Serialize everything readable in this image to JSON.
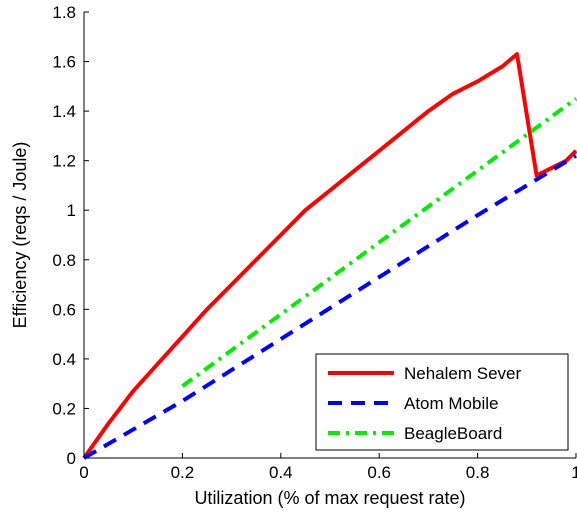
{
  "chart_data": {
    "type": "line",
    "xlabel": "Utilization (% of max request rate)",
    "ylabel": "Efficiency (reqs / Joule)",
    "xlim": [
      0,
      1
    ],
    "ylim": [
      0,
      1.8
    ],
    "grid": false,
    "x_ticks": [
      0,
      0.2,
      0.4,
      0.6,
      0.8,
      1
    ],
    "x_tick_labels": [
      "0",
      "0.2",
      "0.4",
      "0.6",
      "0.8",
      "1"
    ],
    "y_ticks": [
      0,
      0.2,
      0.4,
      0.6,
      0.8,
      1,
      1.2,
      1.4,
      1.6,
      1.8
    ],
    "y_tick_labels": [
      "0",
      "0.2",
      "0.4",
      "0.6",
      "0.8",
      "1",
      "1.2",
      "1.4",
      "1.6",
      "1.8"
    ],
    "legend_position": "bottom-right",
    "series": [
      {
        "name": "Nehalem Sever",
        "color": "#ff0000",
        "style": "solid",
        "x": [
          0,
          0.05,
          0.1,
          0.15,
          0.2,
          0.25,
          0.3,
          0.35,
          0.4,
          0.45,
          0.5,
          0.55,
          0.6,
          0.65,
          0.7,
          0.75,
          0.8,
          0.85,
          0.88,
          0.92,
          0.95,
          0.98,
          1.0
        ],
        "y": [
          0.0,
          0.14,
          0.27,
          0.38,
          0.49,
          0.6,
          0.7,
          0.8,
          0.9,
          1.0,
          1.08,
          1.16,
          1.24,
          1.32,
          1.4,
          1.47,
          1.52,
          1.58,
          1.63,
          1.14,
          1.17,
          1.2,
          1.24
        ]
      },
      {
        "name": "Atom Mobile",
        "color": "#0000ff",
        "style": "dashed",
        "x": [
          0,
          0.2,
          0.4,
          0.6,
          0.8,
          1.0
        ],
        "y": [
          0.0,
          0.23,
          0.48,
          0.73,
          0.98,
          1.22
        ]
      },
      {
        "name": "BeagleBoard",
        "color": "#00ee00",
        "style": "dashdot",
        "x": [
          0.2,
          0.4,
          0.6,
          0.8,
          1.0
        ],
        "y": [
          0.29,
          0.58,
          0.87,
          1.16,
          1.45
        ]
      }
    ]
  }
}
